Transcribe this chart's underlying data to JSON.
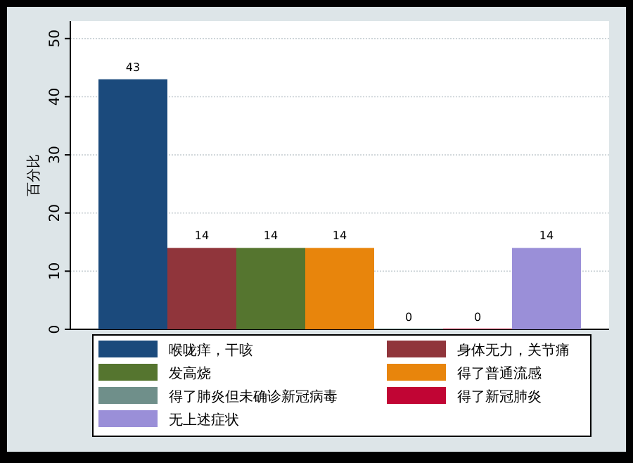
{
  "chart_data": {
    "type": "bar",
    "ylabel": "百分比",
    "categories": [
      null
    ],
    "series": [
      {
        "name": "喉咙痒，干咳",
        "color": "#1b4a7c",
        "values": [
          43
        ]
      },
      {
        "name": "身体无力，关节痛",
        "color": "#90353b",
        "values": [
          14
        ]
      },
      {
        "name": "发高烧",
        "color": "#55752f",
        "values": [
          14
        ]
      },
      {
        "name": "得了普通流感",
        "color": "#e8850c",
        "values": [
          14
        ]
      },
      {
        "name": "得了肺炎但未确诊新冠病毒",
        "color": "#6f8f8a",
        "values": [
          0
        ]
      },
      {
        "name": "得了新冠肺炎",
        "color": "#c10534",
        "values": [
          0
        ]
      },
      {
        "name": "无上述症状",
        "color": "#9a8fd8",
        "values": [
          14
        ]
      }
    ],
    "ylim": [
      0,
      53
    ],
    "yticks": [
      0,
      10,
      20,
      30,
      40,
      50
    ],
    "grid": "y",
    "legend": "bottom",
    "data_labels": true
  }
}
